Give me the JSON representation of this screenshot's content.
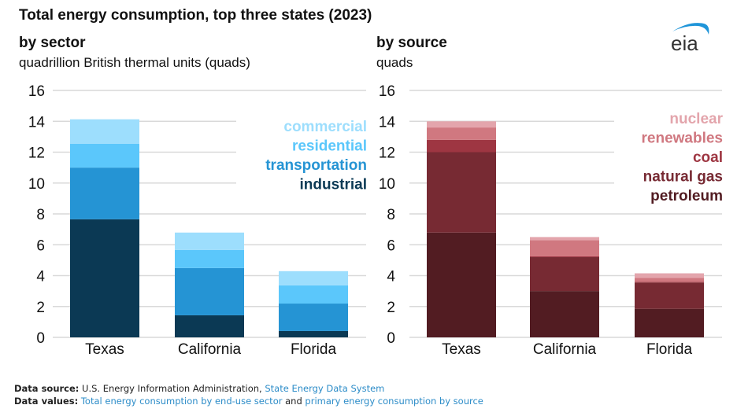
{
  "title": "Total energy consumption, top three states (2023)",
  "logo_text": "eia",
  "left_panel": {
    "subtitle": "by sector",
    "unit": "quadrillion British thermal units (quads)"
  },
  "right_panel": {
    "subtitle": "by source",
    "unit": "quads"
  },
  "footer": {
    "source_label": "Data source:",
    "source_text": "U.S. Energy Information Administration,",
    "source_link": "State Energy Data System",
    "values_label": "Data values:",
    "values_link1": "Total energy consumption by end-use sector",
    "values_and": "and",
    "values_link2": "primary energy consumption by source"
  },
  "chart_data": [
    {
      "type": "bar",
      "stacked": true,
      "title": "by sector",
      "ylabel": "quadrillion British thermal units (quads)",
      "xlabel": "",
      "categories": [
        "Texas",
        "California",
        "Florida"
      ],
      "ylim": [
        0,
        16
      ],
      "yticks": [
        0,
        2,
        4,
        6,
        8,
        10,
        12,
        14,
        16
      ],
      "grid": true,
      "legend_position": "top-right",
      "series": [
        {
          "name": "industrial",
          "color": "#0b3954",
          "values": [
            7.65,
            1.43,
            0.41
          ]
        },
        {
          "name": "transportation",
          "color": "#2594d4",
          "values": [
            3.35,
            3.06,
            1.78
          ]
        },
        {
          "name": "residential",
          "color": "#5bc7fb",
          "values": [
            1.55,
            1.17,
            1.18
          ]
        },
        {
          "name": "commercial",
          "color": "#9ddefd",
          "values": [
            1.58,
            1.13,
            0.92
          ]
        }
      ]
    },
    {
      "type": "bar",
      "stacked": true,
      "title": "by source",
      "ylabel": "quads",
      "xlabel": "",
      "categories": [
        "Texas",
        "California",
        "Florida"
      ],
      "ylim": [
        0,
        16
      ],
      "yticks": [
        0,
        2,
        4,
        6,
        8,
        10,
        12,
        14,
        16
      ],
      "grid": true,
      "legend_position": "top-right",
      "series": [
        {
          "name": "petroleum",
          "color": "#521c22",
          "values": [
            6.79,
            3.0,
            1.85
          ]
        },
        {
          "name": "natural gas",
          "color": "#772a33",
          "values": [
            5.21,
            2.2,
            1.7
          ]
        },
        {
          "name": "coal",
          "color": "#9e3642",
          "values": [
            0.8,
            0.05,
            0.05
          ]
        },
        {
          "name": "renewables",
          "color": "#d07880",
          "values": [
            0.8,
            1.05,
            0.25
          ]
        },
        {
          "name": "nuclear",
          "color": "#e3a5ac",
          "values": [
            0.4,
            0.2,
            0.3
          ]
        }
      ]
    }
  ]
}
